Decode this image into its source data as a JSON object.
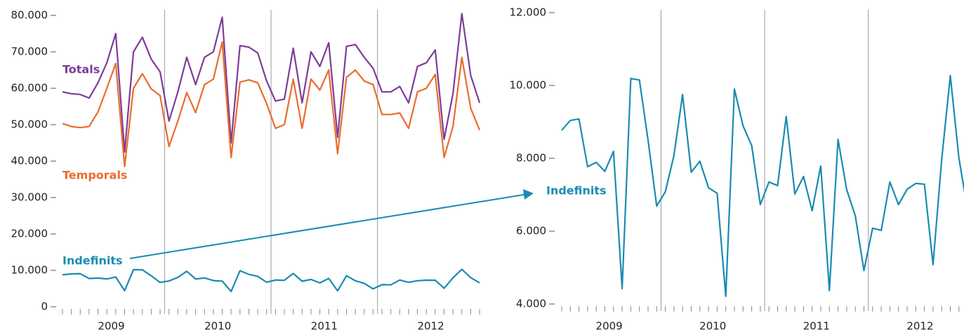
{
  "chart_data": [
    {
      "type": "line",
      "categories": [
        null,
        null,
        null,
        null,
        null,
        null,
        null,
        null,
        null,
        null,
        null,
        null,
        null,
        null,
        null,
        null,
        null,
        null,
        null,
        null,
        null,
        null,
        null,
        null,
        null,
        null,
        null,
        null,
        null,
        null,
        null,
        null,
        null,
        null,
        null,
        null,
        null,
        null,
        null,
        null,
        null,
        null,
        null,
        null,
        null,
        null,
        null,
        null
      ],
      "years": [
        "2009",
        "2010",
        "2011",
        "2012"
      ],
      "ylim": [
        0,
        80000
      ],
      "yticks": [
        0,
        {
          "value": 10000,
          "label": "10.000"
        },
        {
          "value": 20000,
          "label": "20.000"
        },
        {
          "value": 30000,
          "label": "30.000"
        },
        {
          "value": 40000,
          "label": "40.000"
        },
        {
          "value": 50000,
          "label": "50.000"
        },
        {
          "value": 60000,
          "label": "60.000"
        },
        {
          "value": 70000,
          "label": "70.000"
        },
        {
          "value": 80000,
          "label": "80.000"
        }
      ],
      "series": [
        {
          "name": "Totals",
          "color": "#7d3c98",
          "values": [
            59000,
            58500,
            58300,
            57300,
            61500,
            67000,
            75000,
            42500,
            70000,
            74000,
            68000,
            64500,
            51000,
            59000,
            68500,
            61000,
            68500,
            70000,
            79500,
            45000,
            71700,
            71300,
            69700,
            62000,
            56500,
            57000,
            71000,
            56000,
            70000,
            66000,
            72500,
            46500,
            71500,
            72000,
            68500,
            65500,
            59000,
            59000,
            60500,
            56000,
            66000,
            67000,
            70500,
            46000,
            58500,
            80500,
            63500,
            56000
          ]
        },
        {
          "name": "Temporals",
          "color": "#ec6b2d",
          "values": [
            50300,
            49500,
            49200,
            49500,
            53500,
            60000,
            66800,
            38500,
            60000,
            64000,
            59800,
            58000,
            44000,
            51000,
            58800,
            53300,
            61000,
            62500,
            72700,
            41000,
            61700,
            62300,
            61500,
            55800,
            49000,
            50000,
            62500,
            49000,
            62500,
            59500,
            65000,
            42000,
            63000,
            65000,
            62000,
            61000,
            52800,
            52800,
            53200,
            49000,
            59000,
            60000,
            63800,
            41000,
            49500,
            68500,
            54500,
            48500
          ]
        },
        {
          "name": "Indefinits",
          "color": "#1a8bb2",
          "values": [
            8770,
            9040,
            9080,
            7770,
            7890,
            7640,
            8190,
            4420,
            10190,
            10150,
            8500,
            6690,
            7080,
            8080,
            9750,
            7620,
            7920,
            7190,
            7040,
            4210,
            9900,
            8890,
            8350,
            6730,
            7350,
            7250,
            9150,
            7020,
            7500,
            6560,
            7790,
            4370,
            8520,
            7140,
            6420,
            4920,
            6080,
            6020,
            7350,
            6730,
            7150,
            7310,
            7290,
            5080,
            7960,
            10270,
            8000,
            6580
          ]
        }
      ]
    },
    {
      "type": "line",
      "categories": [
        null,
        null,
        null,
        null,
        null,
        null,
        null,
        null,
        null,
        null,
        null,
        null,
        null,
        null,
        null,
        null,
        null,
        null,
        null,
        null,
        null,
        null,
        null,
        null,
        null,
        null,
        null,
        null,
        null,
        null,
        null,
        null,
        null,
        null,
        null,
        null,
        null,
        null,
        null,
        null,
        null,
        null,
        null,
        null,
        null,
        null,
        null,
        null
      ],
      "years": [
        "2009",
        "2010",
        "2011",
        "2012"
      ],
      "ylim": [
        4000,
        12000
      ],
      "yticks": [
        {
          "value": 4000,
          "label": "4.000"
        },
        {
          "value": 6000,
          "label": "6.000"
        },
        {
          "value": 8000,
          "label": "8.000"
        },
        {
          "value": 10000,
          "label": "10.000"
        },
        {
          "value": 12000,
          "label": "12.000"
        }
      ],
      "series": [
        {
          "name": "Indefinits",
          "color": "#1a8bb2",
          "values": [
            8770,
            9040,
            9080,
            7770,
            7890,
            7640,
            8190,
            4420,
            10190,
            10150,
            8500,
            6690,
            7080,
            8080,
            9750,
            7620,
            7920,
            7190,
            7040,
            4210,
            9900,
            8890,
            8350,
            6730,
            7350,
            7250,
            9150,
            7020,
            7500,
            6560,
            7790,
            4370,
            8520,
            7140,
            6420,
            4920,
            6080,
            6020,
            7350,
            6730,
            7150,
            7310,
            7290,
            5080,
            7960,
            10270,
            8000,
            6580
          ]
        }
      ]
    }
  ]
}
